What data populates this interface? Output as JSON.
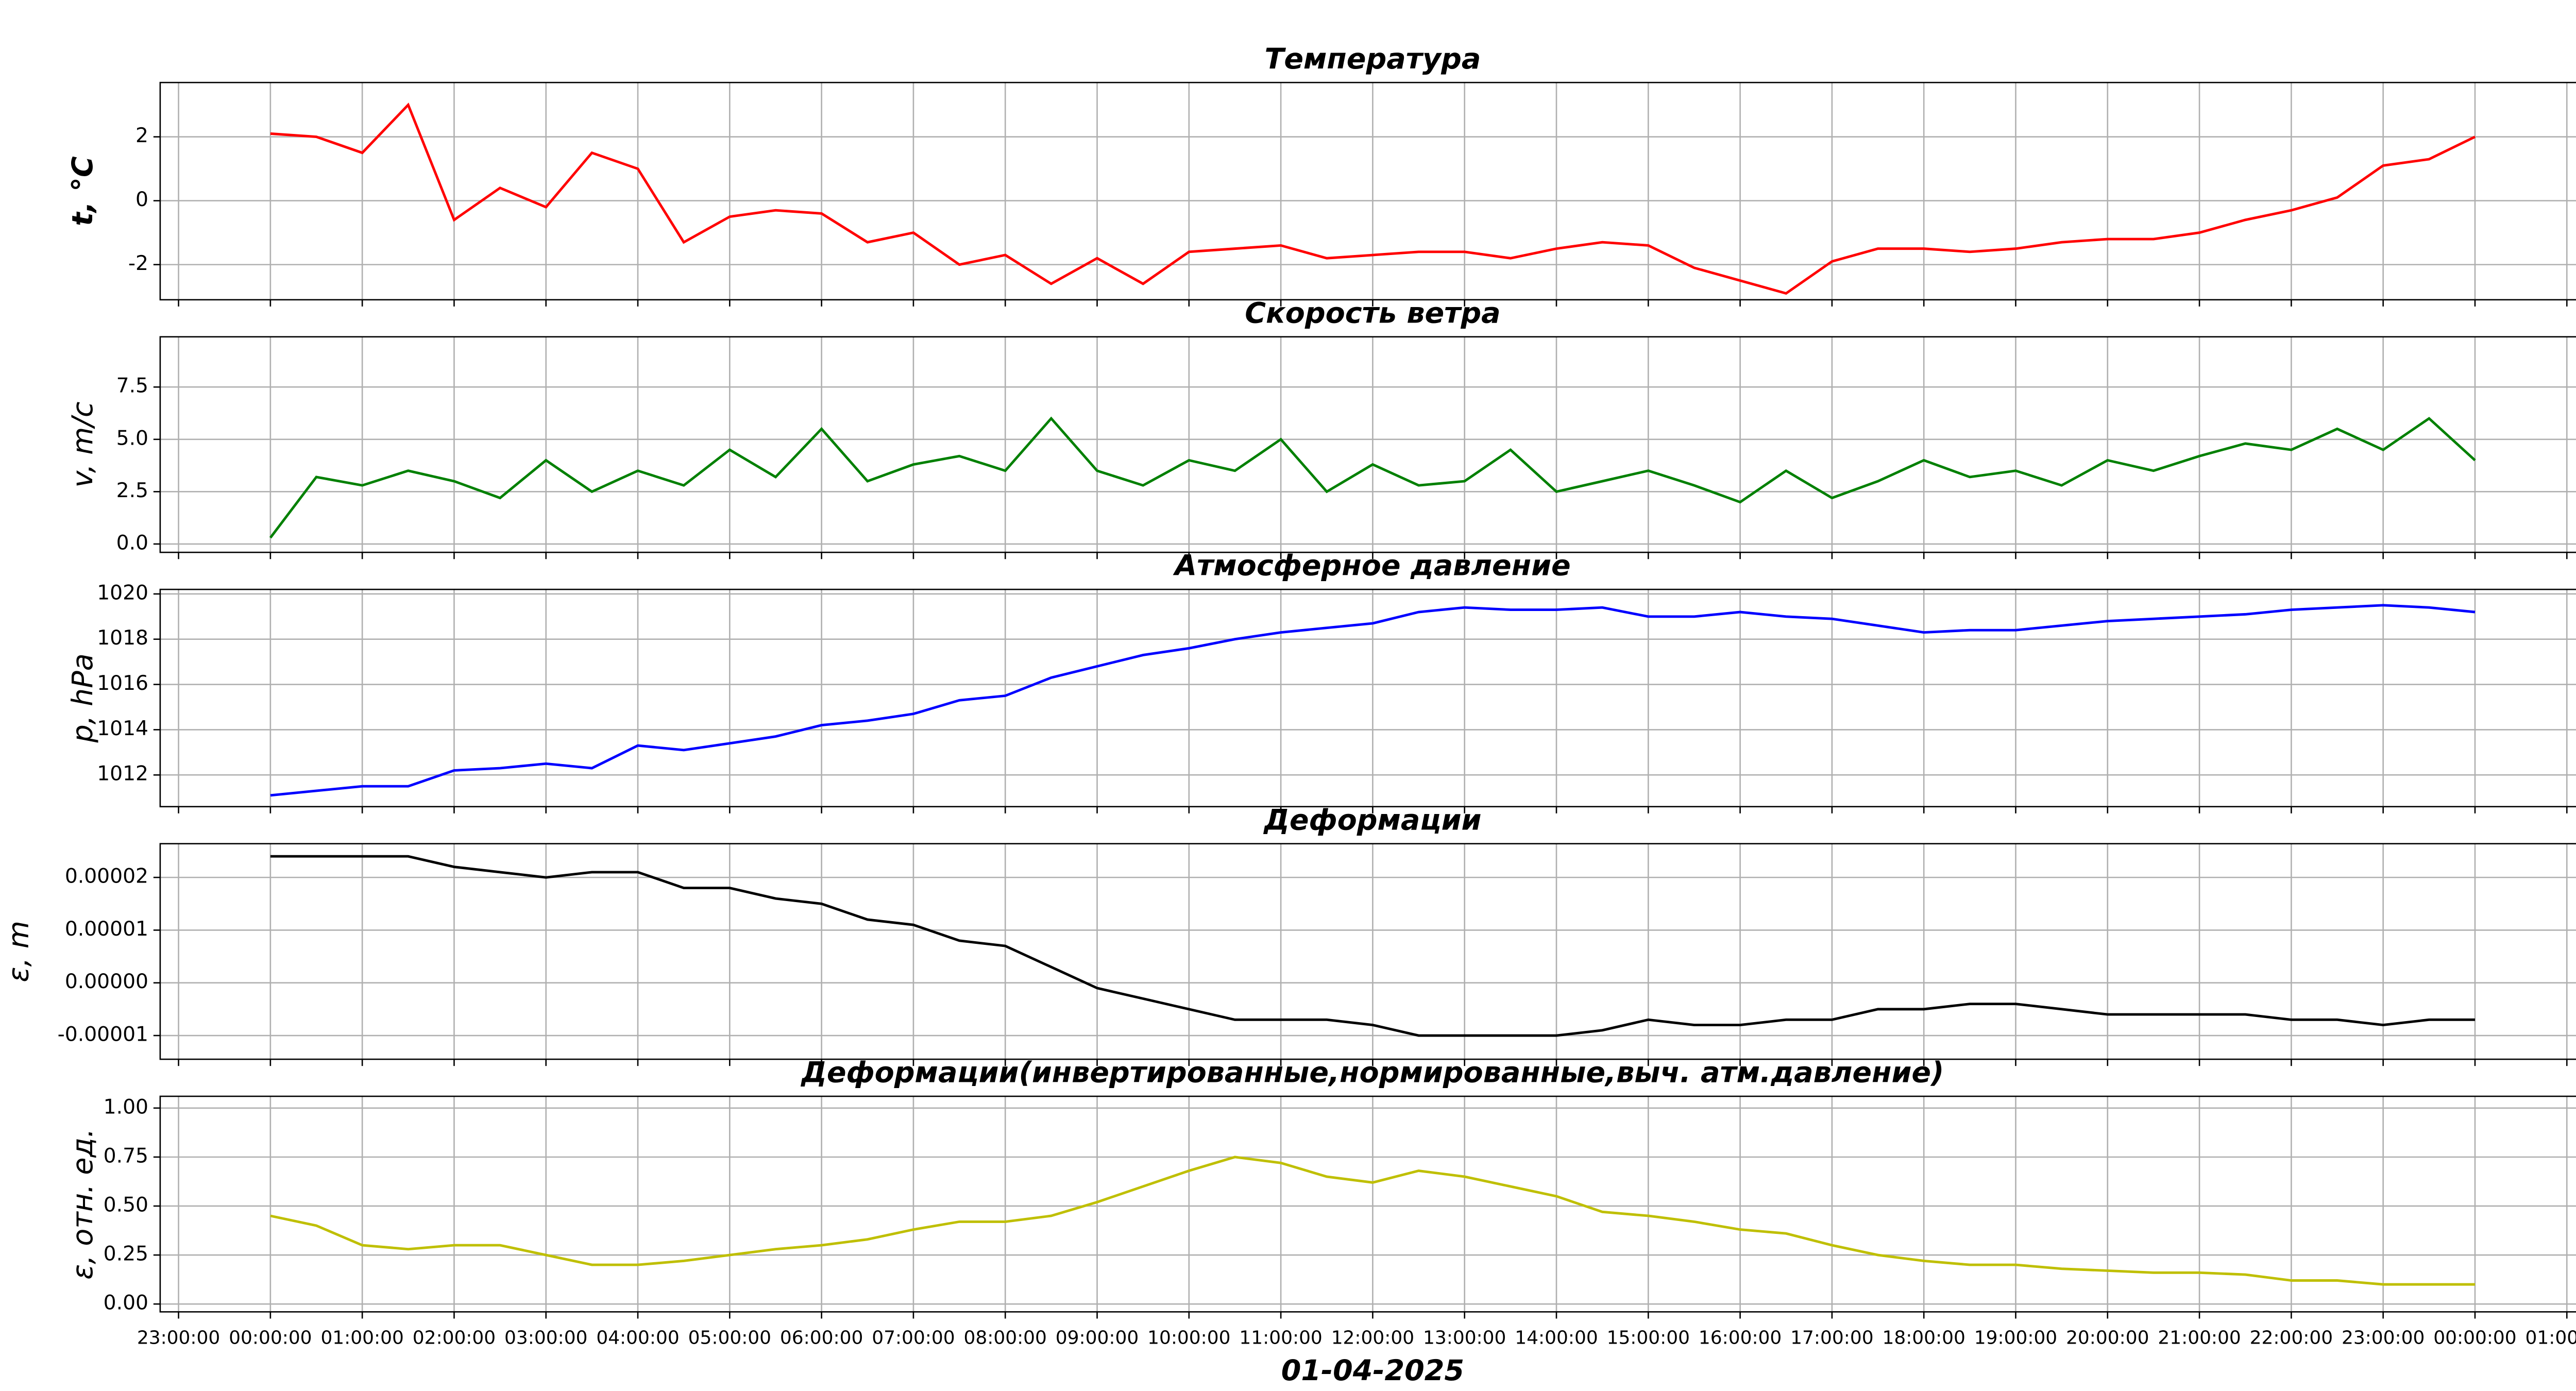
{
  "chart_data": [
    {
      "type": "line",
      "title": "Температура",
      "ylabel": "t, °C",
      "color": "#ff0000",
      "x": [
        0,
        0.5,
        1,
        1.5,
        2,
        2.5,
        3,
        3.5,
        4,
        4.5,
        5,
        5.5,
        6,
        6.5,
        7,
        7.5,
        8,
        8.5,
        9,
        9.5,
        10,
        10.5,
        11,
        11.5,
        12,
        12.5,
        13,
        13.5,
        14,
        14.5,
        15,
        15.5,
        16,
        16.5,
        17,
        17.5,
        18,
        18.5,
        19,
        19.5,
        20,
        20.5,
        21,
        21.5,
        22,
        22.5,
        23,
        23.5,
        24
      ],
      "values": [
        2.1,
        2.0,
        1.5,
        3.0,
        -0.6,
        0.4,
        -0.2,
        1.5,
        1.0,
        -1.3,
        -0.5,
        -0.3,
        -0.4,
        -1.3,
        -1.0,
        -2.0,
        -1.7,
        -2.6,
        -1.8,
        -2.6,
        -1.6,
        -1.5,
        -1.4,
        -1.8,
        -1.7,
        -1.6,
        -1.6,
        -1.8,
        -1.5,
        -1.3,
        -1.4,
        -2.1,
        -2.5,
        -2.9,
        -1.9,
        -1.5,
        -1.5,
        -1.6,
        -1.5,
        -1.3,
        -1.2,
        -1.2,
        -1.0,
        -0.6,
        -0.3,
        0.1,
        1.1,
        1.3,
        2.0
      ],
      "xlim": [
        -1.2,
        25.2
      ],
      "xticks": [
        -1,
        0,
        1,
        2,
        3,
        4,
        5,
        6,
        7,
        8,
        9,
        10,
        11,
        12,
        13,
        14,
        15,
        16,
        17,
        18,
        19,
        20,
        21,
        22,
        23,
        24,
        25
      ],
      "ylim": [
        -3.1,
        3.7
      ],
      "yticks": [
        -2,
        0,
        2
      ],
      "grid": true
    },
    {
      "type": "line",
      "title": "Скорость ветра",
      "ylabel": "v, m/c",
      "color": "#008000",
      "x": [
        0,
        0.5,
        1,
        1.5,
        2,
        2.5,
        3,
        3.5,
        4,
        4.5,
        5,
        5.5,
        6,
        6.5,
        7,
        7.5,
        8,
        8.5,
        9,
        9.5,
        10,
        10.5,
        11,
        11.5,
        12,
        12.5,
        13,
        13.5,
        14,
        14.5,
        15,
        15.5,
        16,
        16.5,
        17,
        17.5,
        18,
        18.5,
        19,
        19.5,
        20,
        20.5,
        21,
        21.5,
        22,
        22.5,
        23,
        23.5,
        24
      ],
      "values": [
        0.3,
        3.2,
        2.8,
        3.5,
        3.0,
        2.2,
        4.0,
        2.5,
        3.5,
        2.8,
        4.5,
        3.2,
        5.5,
        3.0,
        3.8,
        4.2,
        3.5,
        6.0,
        3.5,
        2.8,
        4.0,
        3.5,
        5.0,
        2.5,
        3.8,
        2.8,
        3.0,
        4.5,
        2.5,
        3.0,
        3.5,
        2.8,
        2.0,
        3.5,
        2.2,
        3.0,
        4.0,
        3.2,
        3.5,
        2.8,
        4.0,
        3.5,
        4.2,
        4.8,
        4.5,
        5.5,
        4.5,
        6.0,
        4.0
      ],
      "xlim": [
        -1.2,
        25.2
      ],
      "xticks": [
        -1,
        0,
        1,
        2,
        3,
        4,
        5,
        6,
        7,
        8,
        9,
        10,
        11,
        12,
        13,
        14,
        15,
        16,
        17,
        18,
        19,
        20,
        21,
        22,
        23,
        24,
        25
      ],
      "ylim": [
        -0.4,
        9.9
      ],
      "yticks": [
        {
          "value": 0,
          "label": "0.0"
        },
        2.5,
        {
          "value": 5,
          "label": "5.0"
        },
        7.5
      ],
      "grid": true
    },
    {
      "type": "line",
      "title": "Атмосферное давление",
      "ylabel": "p, hPa",
      "color": "#0000ff",
      "x": [
        0,
        0.5,
        1,
        1.5,
        2,
        2.5,
        3,
        3.5,
        4,
        4.5,
        5,
        5.5,
        6,
        6.5,
        7,
        7.5,
        8,
        8.5,
        9,
        9.5,
        10,
        10.5,
        11,
        11.5,
        12,
        12.5,
        13,
        13.5,
        14,
        14.5,
        15,
        15.5,
        16,
        16.5,
        17,
        17.5,
        18,
        18.5,
        19,
        19.5,
        20,
        20.5,
        21,
        21.5,
        22,
        22.5,
        23,
        23.5,
        24
      ],
      "values": [
        1011.1,
        1011.3,
        1011.5,
        1011.5,
        1012.2,
        1012.3,
        1012.5,
        1012.3,
        1013.3,
        1013.1,
        1013.4,
        1013.7,
        1014.2,
        1014.4,
        1014.7,
        1015.3,
        1015.5,
        1016.3,
        1016.8,
        1017.3,
        1017.6,
        1018.0,
        1018.3,
        1018.5,
        1018.7,
        1019.2,
        1019.4,
        1019.3,
        1019.3,
        1019.4,
        1019.0,
        1019.0,
        1019.2,
        1019.0,
        1018.9,
        1018.6,
        1018.3,
        1018.4,
        1018.4,
        1018.6,
        1018.8,
        1018.9,
        1019.0,
        1019.1,
        1019.3,
        1019.4,
        1019.5,
        1019.4,
        1019.2
      ],
      "xlim": [
        -1.2,
        25.2
      ],
      "xticks": [
        -1,
        0,
        1,
        2,
        3,
        4,
        5,
        6,
        7,
        8,
        9,
        10,
        11,
        12,
        13,
        14,
        15,
        16,
        17,
        18,
        19,
        20,
        21,
        22,
        23,
        24,
        25
      ],
      "ylim": [
        1010.6,
        1020.2
      ],
      "yticks": [
        1012,
        1014,
        1016,
        1018,
        1020
      ],
      "grid": true
    },
    {
      "type": "line",
      "title": "Деформации",
      "ylabel": "ε, m",
      "color": "#000000",
      "x": [
        0,
        0.5,
        1,
        1.5,
        2,
        2.5,
        3,
        3.5,
        4,
        4.5,
        5,
        5.5,
        6,
        6.5,
        7,
        7.5,
        8,
        8.5,
        9,
        9.5,
        10,
        10.5,
        11,
        11.5,
        12,
        12.5,
        13,
        13.5,
        14,
        14.5,
        15,
        15.5,
        16,
        16.5,
        17,
        17.5,
        18,
        18.5,
        19,
        19.5,
        20,
        20.5,
        21,
        21.5,
        22,
        22.5,
        23,
        23.5,
        24
      ],
      "values": [
        2.4e-05,
        2.4e-05,
        2.4e-05,
        2.4e-05,
        2.2e-05,
        2.1e-05,
        2e-05,
        2.1e-05,
        2.1e-05,
        1.8e-05,
        1.8e-05,
        1.6e-05,
        1.5e-05,
        1.2e-05,
        1.1e-05,
        8e-06,
        7e-06,
        3e-06,
        -1e-06,
        -3e-06,
        -5e-06,
        -7e-06,
        -7e-06,
        -7e-06,
        -8e-06,
        -1e-05,
        -1e-05,
        -1e-05,
        -1e-05,
        -9e-06,
        -7e-06,
        -8e-06,
        -8e-06,
        -7e-06,
        -7e-06,
        -5e-06,
        -5e-06,
        -4e-06,
        -4e-06,
        -5e-06,
        -6e-06,
        -6e-06,
        -6e-06,
        -6e-06,
        -7e-06,
        -7e-06,
        -8e-06,
        -7e-06,
        -7e-06
      ],
      "xlim": [
        -1.2,
        25.2
      ],
      "xticks": [
        -1,
        0,
        1,
        2,
        3,
        4,
        5,
        6,
        7,
        8,
        9,
        10,
        11,
        12,
        13,
        14,
        15,
        16,
        17,
        18,
        19,
        20,
        21,
        22,
        23,
        24,
        25
      ],
      "ylim": [
        -1.45e-05,
        2.64e-05
      ],
      "yticks": [
        {
          "value": -1e-05,
          "label": "-0.00001"
        },
        {
          "value": 0,
          "label": "0.00000"
        },
        {
          "value": 1e-05,
          "label": "0.00001"
        },
        {
          "value": 2e-05,
          "label": "0.00002"
        }
      ],
      "grid": true
    },
    {
      "type": "line",
      "title": "Деформации(инвертированные,нормированные,выч. атм.давление)",
      "ylabel": "ε, отн. ед.",
      "color": "#bfbf00",
      "xlabel": "01-04-2025",
      "x": [
        0,
        0.5,
        1,
        1.5,
        2,
        2.5,
        3,
        3.5,
        4,
        4.5,
        5,
        5.5,
        6,
        6.5,
        7,
        7.5,
        8,
        8.5,
        9,
        9.5,
        10,
        10.5,
        11,
        11.5,
        12,
        12.5,
        13,
        13.5,
        14,
        14.5,
        15,
        15.5,
        16,
        16.5,
        17,
        17.5,
        18,
        18.5,
        19,
        19.5,
        20,
        20.5,
        21,
        21.5,
        22,
        22.5,
        23,
        23.5,
        24
      ],
      "values": [
        0.45,
        0.4,
        0.3,
        0.28,
        0.3,
        0.3,
        0.25,
        0.2,
        0.2,
        0.22,
        0.25,
        0.28,
        0.3,
        0.33,
        0.38,
        0.42,
        0.42,
        0.45,
        0.52,
        0.6,
        0.68,
        0.75,
        0.72,
        0.65,
        0.62,
        0.68,
        0.65,
        0.6,
        0.55,
        0.47,
        0.45,
        0.42,
        0.38,
        0.36,
        0.3,
        0.25,
        0.22,
        0.2,
        0.2,
        0.18,
        0.17,
        0.16,
        0.16,
        0.15,
        0.12,
        0.12,
        0.1,
        0.1,
        0.1
      ],
      "xlim": [
        -1.2,
        25.2
      ],
      "xticks": [
        {
          "value": -1,
          "label": "23:00:00"
        },
        {
          "value": 0,
          "label": "00:00:00"
        },
        {
          "value": 1,
          "label": "01:00:00"
        },
        {
          "value": 2,
          "label": "02:00:00"
        },
        {
          "value": 3,
          "label": "03:00:00"
        },
        {
          "value": 4,
          "label": "04:00:00"
        },
        {
          "value": 5,
          "label": "05:00:00"
        },
        {
          "value": 6,
          "label": "06:00:00"
        },
        {
          "value": 7,
          "label": "07:00:00"
        },
        {
          "value": 8,
          "label": "08:00:00"
        },
        {
          "value": 9,
          "label": "09:00:00"
        },
        {
          "value": 10,
          "label": "10:00:00"
        },
        {
          "value": 11,
          "label": "11:00:00"
        },
        {
          "value": 12,
          "label": "12:00:00"
        },
        {
          "value": 13,
          "label": "13:00:00"
        },
        {
          "value": 14,
          "label": "14:00:00"
        },
        {
          "value": 15,
          "label": "15:00:00"
        },
        {
          "value": 16,
          "label": "16:00:00"
        },
        {
          "value": 17,
          "label": "17:00:00"
        },
        {
          "value": 18,
          "label": "18:00:00"
        },
        {
          "value": 19,
          "label": "19:00:00"
        },
        {
          "value": 20,
          "label": "20:00:00"
        },
        {
          "value": 21,
          "label": "21:00:00"
        },
        {
          "value": 22,
          "label": "22:00:00"
        },
        {
          "value": 23,
          "label": "23:00:00"
        },
        {
          "value": 24,
          "label": "00:00:00"
        },
        {
          "value": 25,
          "label": "01:00:00"
        }
      ],
      "ylim": [
        -0.04,
        1.06
      ],
      "yticks": [
        {
          "value": 0,
          "label": "0.00"
        },
        0.25,
        {
          "value": 0.5,
          "label": "0.50"
        },
        0.75,
        {
          "value": 1,
          "label": "1.00"
        }
      ],
      "grid": true
    }
  ]
}
